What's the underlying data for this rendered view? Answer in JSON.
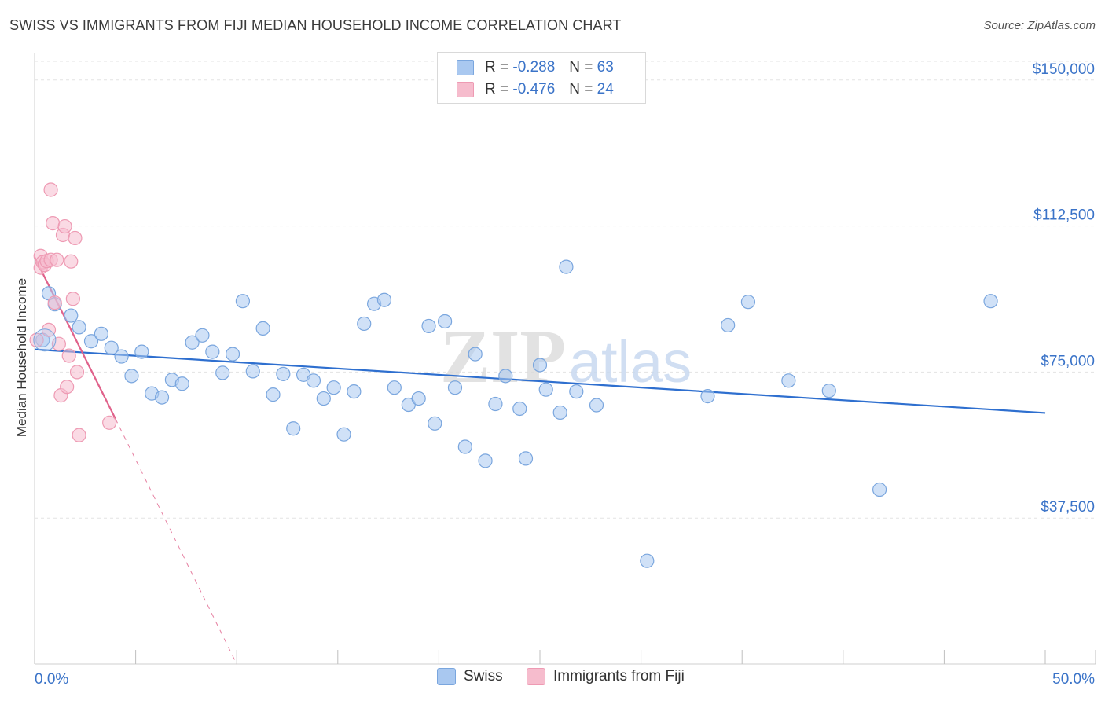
{
  "title": "SWISS VS IMMIGRANTS FROM FIJI MEDIAN HOUSEHOLD INCOME CORRELATION CHART",
  "source": "Source: ZipAtlas.com",
  "watermark": {
    "zip": "ZIP",
    "atlas": "atlas"
  },
  "legend": {
    "swiss": {
      "r_label": "R =",
      "r_value": "-0.288",
      "n_label": "N =",
      "n_value": "63"
    },
    "fiji": {
      "r_label": "R =",
      "r_value": "-0.476",
      "n_label": "N =",
      "n_value": "24"
    }
  },
  "bottom_legend": {
    "swiss": "Swiss",
    "fiji": "Immigrants from Fiji"
  },
  "colors": {
    "swiss_fill": "#a9c8f0",
    "swiss_stroke": "#7aa6de",
    "swiss_line": "#2e6fcf",
    "fiji_fill": "#f6bccd",
    "fiji_stroke": "#ee9ab3",
    "fiji_line": "#e0628b",
    "tick_label": "#3a73c8",
    "grid": "#e3e3e3"
  },
  "chart_data": {
    "type": "scatter",
    "title": "SWISS VS IMMIGRANTS FROM FIJI MEDIAN HOUSEHOLD INCOME CORRELATION CHART",
    "xlabel": "",
    "ylabel": "Median Household Income",
    "xlim": [
      0,
      50
    ],
    "ylim": [
      0,
      155000
    ],
    "x_tick_labels": [
      {
        "value": 0,
        "label": "0.0%"
      },
      {
        "value": 50,
        "label": "50.0%"
      }
    ],
    "y_ticks": [
      {
        "value": 37500,
        "label": "$37,500"
      },
      {
        "value": 75000,
        "label": "$75,000"
      },
      {
        "value": 112500,
        "label": "$112,500"
      },
      {
        "value": 150000,
        "label": "$150,000"
      }
    ],
    "series": [
      {
        "name": "Swiss",
        "r": -0.288,
        "n": 63,
        "points": [
          [
            0.4,
            83200
          ],
          [
            0.7,
            95200
          ],
          [
            1.0,
            92400
          ],
          [
            1.8,
            89500
          ],
          [
            2.2,
            86500
          ],
          [
            2.8,
            82900
          ],
          [
            3.3,
            84800
          ],
          [
            3.8,
            81200
          ],
          [
            4.3,
            79000
          ],
          [
            4.8,
            74000
          ],
          [
            5.3,
            80200
          ],
          [
            5.8,
            69500
          ],
          [
            6.3,
            68500
          ],
          [
            6.8,
            73000
          ],
          [
            7.3,
            72000
          ],
          [
            7.8,
            82600
          ],
          [
            8.3,
            84400
          ],
          [
            8.8,
            80200
          ],
          [
            9.3,
            74800
          ],
          [
            9.8,
            79600
          ],
          [
            10.3,
            93200
          ],
          [
            10.8,
            75200
          ],
          [
            11.3,
            86200
          ],
          [
            11.8,
            69200
          ],
          [
            12.3,
            74500
          ],
          [
            12.8,
            60500
          ],
          [
            13.3,
            74300
          ],
          [
            13.8,
            72800
          ],
          [
            14.3,
            68200
          ],
          [
            14.8,
            71000
          ],
          [
            15.3,
            59000
          ],
          [
            15.8,
            70000
          ],
          [
            16.3,
            87400
          ],
          [
            16.8,
            92500
          ],
          [
            17.3,
            93500
          ],
          [
            17.8,
            71000
          ],
          [
            18.5,
            66600
          ],
          [
            19.0,
            68200
          ],
          [
            19.5,
            86800
          ],
          [
            19.8,
            61800
          ],
          [
            20.3,
            88000
          ],
          [
            20.8,
            71000
          ],
          [
            21.3,
            55800
          ],
          [
            21.8,
            79600
          ],
          [
            22.3,
            52200
          ],
          [
            22.8,
            66800
          ],
          [
            23.3,
            74000
          ],
          [
            24.0,
            65600
          ],
          [
            24.3,
            52800
          ],
          [
            25.0,
            76800
          ],
          [
            25.3,
            70500
          ],
          [
            26.0,
            64600
          ],
          [
            26.3,
            102000
          ],
          [
            26.8,
            70000
          ],
          [
            27.8,
            66500
          ],
          [
            30.3,
            26500
          ],
          [
            33.3,
            68800
          ],
          [
            34.3,
            87000
          ],
          [
            35.3,
            93000
          ],
          [
            37.3,
            72800
          ],
          [
            39.3,
            70200
          ],
          [
            41.8,
            44800
          ],
          [
            47.3,
            93200
          ]
        ]
      },
      {
        "name": "Immigrants from Fiji",
        "r": -0.476,
        "n": 24,
        "points": [
          [
            0.1,
            83200
          ],
          [
            0.3,
            104800
          ],
          [
            0.3,
            101800
          ],
          [
            0.4,
            103200
          ],
          [
            0.5,
            102500
          ],
          [
            0.6,
            103500
          ],
          [
            0.7,
            85800
          ],
          [
            0.8,
            103800
          ],
          [
            0.8,
            121800
          ],
          [
            0.9,
            113200
          ],
          [
            1.0,
            92800
          ],
          [
            1.1,
            103800
          ],
          [
            1.2,
            82200
          ],
          [
            1.3,
            69000
          ],
          [
            1.4,
            110200
          ],
          [
            1.5,
            112400
          ],
          [
            1.6,
            71200
          ],
          [
            1.7,
            79200
          ],
          [
            1.8,
            103400
          ],
          [
            1.9,
            93800
          ],
          [
            2.0,
            109400
          ],
          [
            2.1,
            75000
          ],
          [
            2.2,
            58800
          ],
          [
            3.7,
            62000
          ]
        ]
      }
    ],
    "trend_lines": [
      {
        "series": "Swiss",
        "x": [
          0.0,
          50.0
        ],
        "y": [
          80800,
          64500
        ],
        "style": "solid"
      },
      {
        "series": "Immigrants from Fiji",
        "x": [
          0.0,
          4.0
        ],
        "y": [
          104500,
          63000
        ],
        "style": "solid"
      },
      {
        "series": "Immigrants from Fiji",
        "x": [
          4.0,
          10.0
        ],
        "y": [
          63000,
          0
        ],
        "style": "dashed"
      }
    ]
  }
}
